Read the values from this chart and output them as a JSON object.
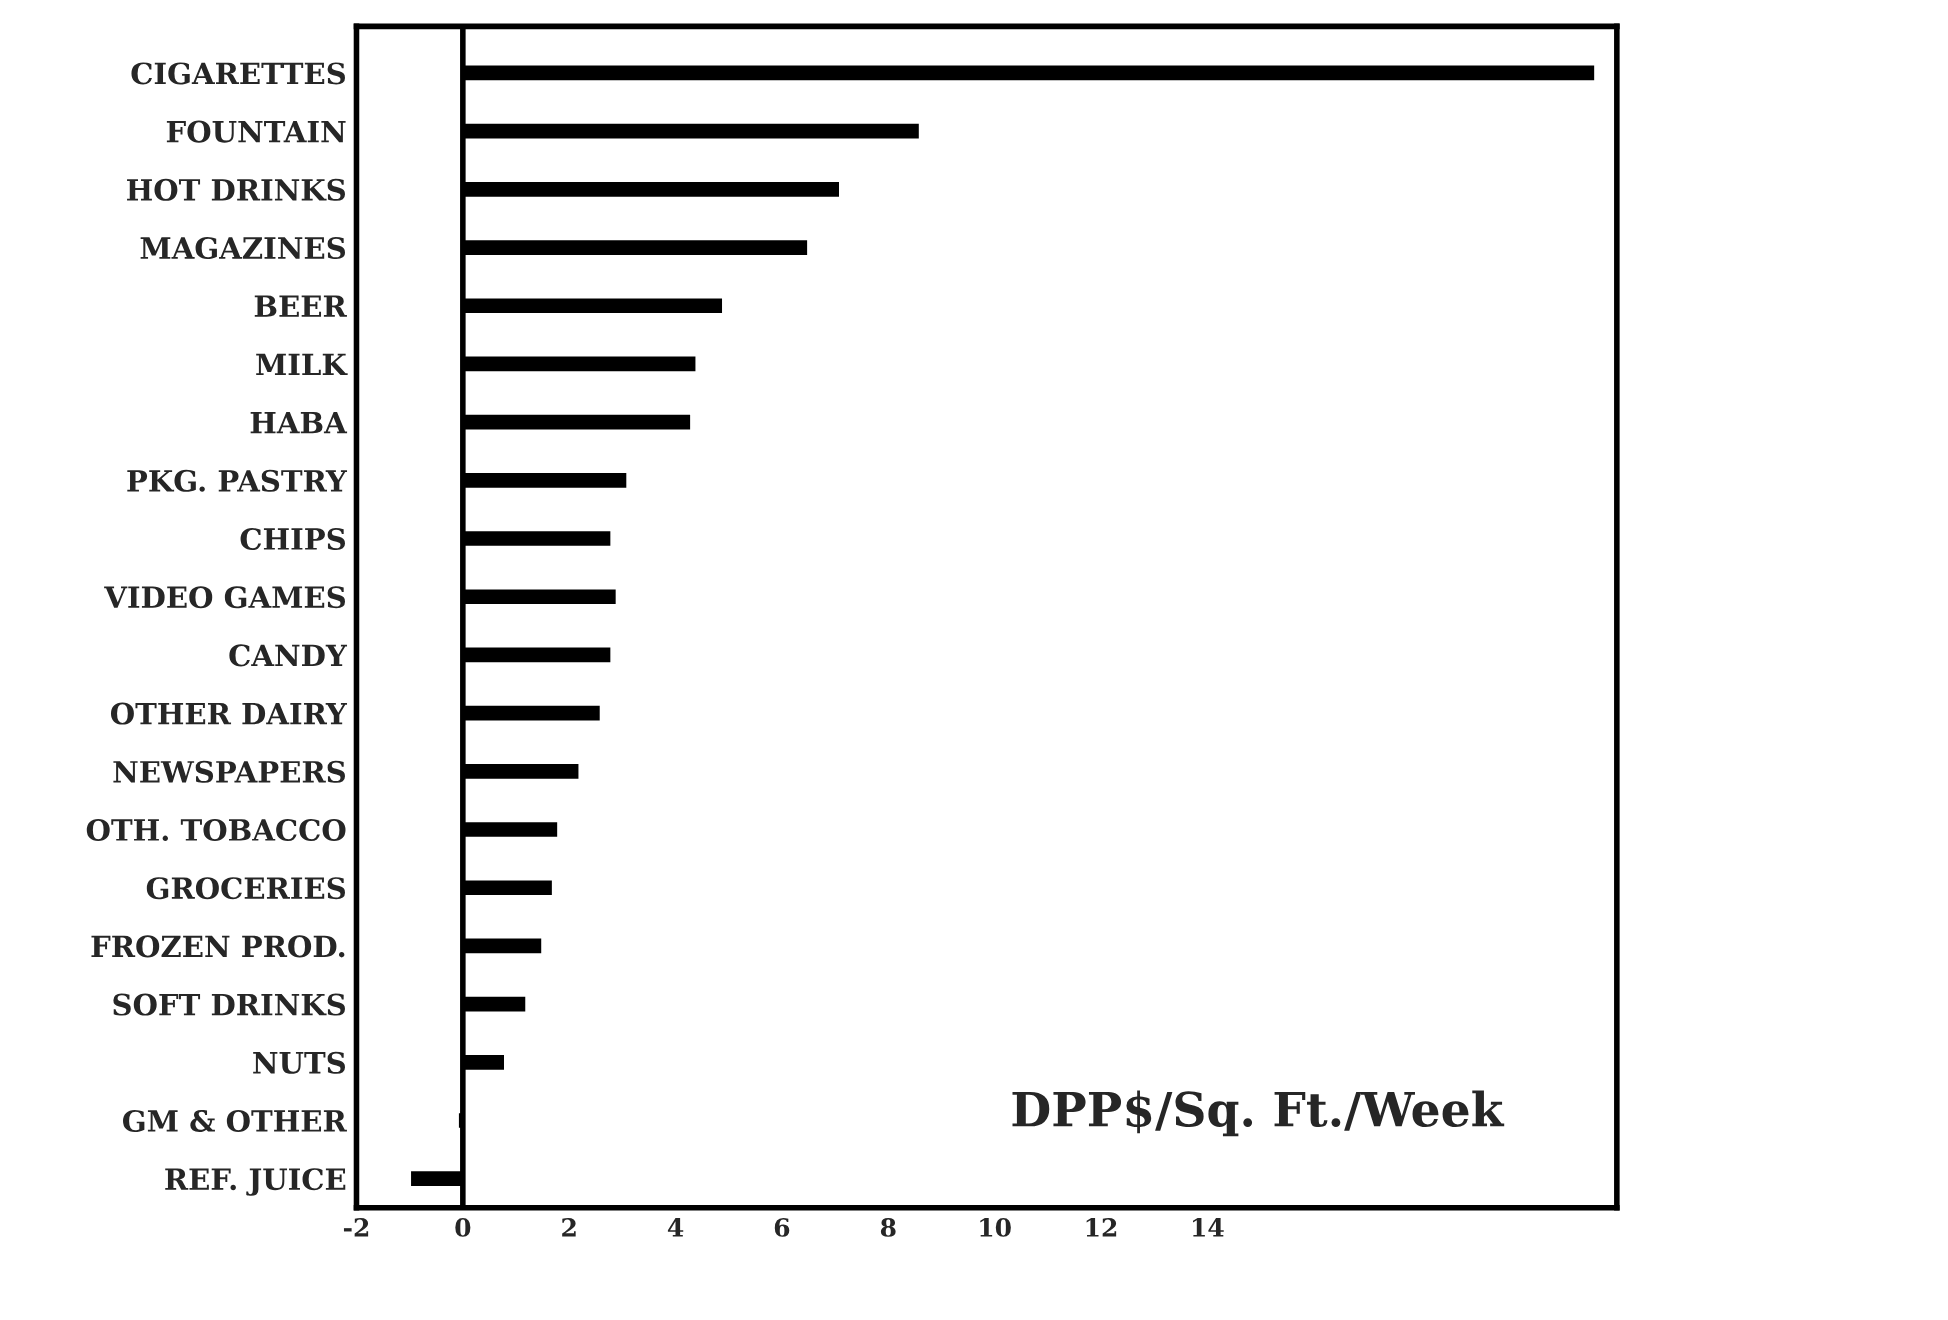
{
  "chart_data": {
    "type": "bar",
    "orientation": "horizontal",
    "categories": [
      "CIGARETTES",
      "FOUNTAIN",
      "HOT DRINKS",
      "MAGAZINES",
      "BEER",
      "MILK",
      "HABA",
      "PKG. PASTRY",
      "CHIPS",
      "VIDEO GAMES",
      "CANDY",
      "OTHER DAIRY",
      "NEWSPAPERS",
      "OTH. TOBACCO",
      "GROCERIES",
      "FROZEN PROD.",
      "SOFT DRINKS",
      "NUTS",
      "GM & OTHER",
      "REF. JUICE"
    ],
    "values": [
      21.3,
      8.6,
      7.1,
      6.5,
      4.9,
      4.4,
      4.3,
      3.1,
      2.8,
      2.9,
      2.8,
      2.6,
      2.2,
      1.8,
      1.7,
      1.5,
      1.2,
      0.8,
      -0.1,
      -1.0
    ],
    "color": "#000000",
    "xlim": [
      -2,
      21.7
    ],
    "xticks": [
      -2,
      0,
      2,
      4,
      6,
      8,
      10,
      12,
      14
    ],
    "ref_lines": [
      {
        "axis": "x",
        "value": 0,
        "color": "#000000"
      }
    ],
    "annotations": [
      "DPP$/Sq. Ft./Week"
    ],
    "grid": false,
    "legend": false
  }
}
